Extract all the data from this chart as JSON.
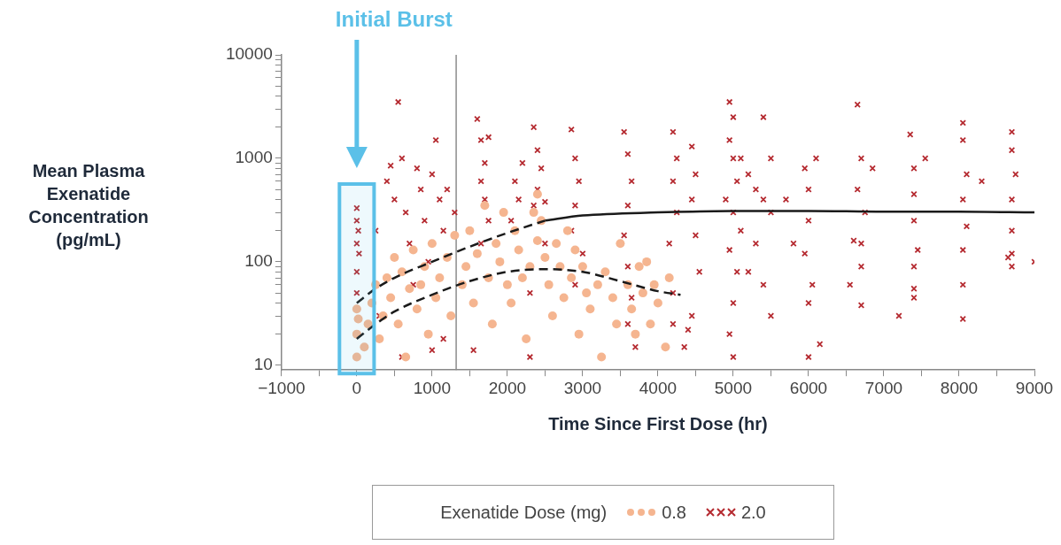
{
  "chart_data": {
    "type": "scatter",
    "ylabel": "Mean Plasma Exenatide Concentration (pg/mL)",
    "xlabel": "Time Since First Dose (hr)",
    "legend_title": "Exenatide Dose (mg)",
    "legend": "bottom",
    "grid": false,
    "log": "y",
    "xlim": [
      -1000,
      9000
    ],
    "xticks": [
      {
        "value": -1000,
        "label": "−1000"
      },
      {
        "value": -500,
        "label": null
      },
      0,
      {
        "value": 500,
        "label": null
      },
      1000,
      {
        "value": 1500,
        "label": null
      },
      2000,
      {
        "value": 2500,
        "label": null
      },
      3000,
      {
        "value": 3500,
        "label": null
      },
      4000,
      {
        "value": 4500,
        "label": null
      },
      5000,
      {
        "value": 5500,
        "label": null
      },
      6000,
      {
        "value": 6500,
        "label": null
      },
      7000,
      {
        "value": 7500,
        "label": null
      },
      8000,
      {
        "value": 8500,
        "label": null
      },
      9000
    ],
    "ylim": [
      9,
      10000
    ],
    "yticks": [
      10,
      {
        "value": 20,
        "label": null
      },
      {
        "value": 30,
        "label": null
      },
      {
        "value": 40,
        "label": null
      },
      {
        "value": 50,
        "label": null
      },
      {
        "value": 60,
        "label": null
      },
      {
        "value": 70,
        "label": null
      },
      {
        "value": 80,
        "label": null
      },
      {
        "value": 90,
        "label": null
      },
      100,
      {
        "value": 200,
        "label": null
      },
      {
        "value": 300,
        "label": null
      },
      {
        "value": 400,
        "label": null
      },
      {
        "value": 500,
        "label": null
      },
      {
        "value": 600,
        "label": null
      },
      {
        "value": 700,
        "label": null
      },
      {
        "value": 800,
        "label": null
      },
      {
        "value": 900,
        "label": null
      },
      1000,
      {
        "value": 2000,
        "label": null
      },
      {
        "value": 3000,
        "label": null
      },
      {
        "value": 4000,
        "label": null
      },
      {
        "value": 5000,
        "label": null
      },
      {
        "value": 6000,
        "label": null
      },
      {
        "value": 7000,
        "label": null
      },
      {
        "value": 8000,
        "label": null
      },
      {
        "value": 9000,
        "label": null
      },
      10000
    ],
    "ref_lines": [
      {
        "axis": "x",
        "value": 1320,
        "color": "#8c8c8c"
      }
    ],
    "bands": [
      {
        "axis": "x",
        "from": -230,
        "to": 230,
        "label": "Initial Burst",
        "color": "#5bc0e8"
      }
    ],
    "series": [
      {
        "name": "0.8",
        "marker": "circle",
        "color": "#f5b590",
        "x": [
          0,
          0,
          0,
          20,
          100,
          150,
          200,
          250,
          300,
          350,
          400,
          450,
          500,
          550,
          600,
          650,
          700,
          750,
          800,
          850,
          900,
          950,
          1000,
          1050,
          1100,
          1200,
          1250,
          1300,
          1400,
          1450,
          1500,
          1550,
          1600,
          1700,
          1750,
          1800,
          1850,
          1900,
          1950,
          2000,
          2050,
          2100,
          2150,
          2200,
          2250,
          2300,
          2350,
          2400,
          2400,
          2450,
          2500,
          2550,
          2600,
          2650,
          2700,
          2750,
          2800,
          2850,
          2900,
          2950,
          3000,
          3050,
          3100,
          3200,
          3250,
          3300,
          3400,
          3450,
          3500,
          3600,
          3650,
          3700,
          3750,
          3800,
          3900,
          4000,
          4100,
          4150,
          3850,
          3950
        ],
        "values": [
          35,
          20,
          12,
          28,
          15,
          25,
          40,
          60,
          18,
          30,
          70,
          45,
          110,
          25,
          80,
          12,
          55,
          130,
          35,
          60,
          90,
          20,
          150,
          45,
          70,
          110,
          30,
          180,
          60,
          90,
          200,
          40,
          120,
          350,
          70,
          25,
          150,
          100,
          300,
          60,
          40,
          200,
          130,
          70,
          18,
          90,
          300,
          450,
          160,
          250,
          110,
          60,
          30,
          150,
          90,
          45,
          200,
          70,
          130,
          20,
          90,
          50,
          35,
          60,
          12,
          80,
          45,
          25,
          150,
          60,
          35,
          20,
          90,
          50,
          25,
          40,
          15,
          70,
          100,
          60
        ]
      },
      {
        "name": "2.0",
        "marker": "cross",
        "color": "#b52a30",
        "x": [
          0,
          0,
          0,
          0,
          0,
          20,
          30,
          250,
          300,
          400,
          450,
          500,
          550,
          600,
          650,
          700,
          750,
          800,
          850,
          900,
          950,
          1150,
          1000,
          1050,
          1100,
          1150,
          1200,
          1300,
          1000,
          600,
          1600,
          1650,
          1700,
          1650,
          1700,
          1750,
          1650,
          1750,
          1550,
          2100,
          2150,
          2200,
          2050,
          2350,
          2400,
          2450,
          2400,
          2350,
          2500,
          2500,
          2300,
          2300,
          2850,
          2900,
          2950,
          2900,
          2850,
          3000,
          2900,
          3550,
          3600,
          3650,
          3600,
          3550,
          3600,
          3650,
          3600,
          3700,
          4200,
          4250,
          4200,
          4250,
          4150,
          4200,
          4200,
          4400,
          4350,
          4450,
          4500,
          4450,
          4500,
          4550,
          4450,
          4950,
          5000,
          4950,
          5000,
          5050,
          4900,
          5000,
          5100,
          4950,
          5050,
          5000,
          4950,
          5000,
          5100,
          5200,
          5300,
          5400,
          5500,
          5300,
          5200,
          5400,
          5500,
          5700,
          5800,
          5400,
          5500,
          5950,
          6000,
          6000,
          5950,
          6050,
          6000,
          6100,
          6150,
          6000,
          6650,
          6700,
          6650,
          6750,
          6700,
          6700,
          6600,
          6850,
          6550,
          6700,
          7350,
          7400,
          7400,
          7400,
          7450,
          7400,
          7400,
          7400,
          7550,
          7200,
          8050,
          8050,
          8100,
          8050,
          8100,
          8050,
          8050,
          8050,
          8300,
          8700,
          8700,
          8750,
          8700,
          8700,
          8700,
          8700,
          8650,
          9000
        ],
        "values": [
          330,
          250,
          150,
          80,
          50,
          200,
          120,
          200,
          30,
          600,
          850,
          400,
          3500,
          1000,
          300,
          150,
          60,
          800,
          500,
          250,
          100,
          18,
          700,
          1500,
          400,
          200,
          500,
          300,
          14,
          12,
          2400,
          1500,
          900,
          600,
          400,
          250,
          150,
          1600,
          14,
          600,
          400,
          900,
          250,
          2000,
          1200,
          800,
          500,
          350,
          380,
          150,
          12,
          50,
          1900,
          1000,
          600,
          350,
          200,
          120,
          60,
          1800,
          1100,
          600,
          350,
          180,
          90,
          45,
          25,
          15,
          1800,
          1000,
          600,
          300,
          150,
          50,
          25,
          22,
          15,
          1300,
          700,
          400,
          180,
          80,
          30,
          3500,
          2500,
          1500,
          1000,
          600,
          400,
          300,
          200,
          130,
          80,
          40,
          20,
          12,
          1000,
          700,
          500,
          400,
          300,
          150,
          80,
          60,
          1000,
          400,
          150,
          2500,
          30,
          800,
          500,
          250,
          120,
          60,
          40,
          1000,
          16,
          12,
          3300,
          1000,
          500,
          300,
          150,
          90,
          160,
          800,
          60,
          38,
          1700,
          800,
          450,
          250,
          130,
          90,
          55,
          45,
          1000,
          30,
          2200,
          1500,
          700,
          400,
          220,
          130,
          60,
          28,
          600,
          1800,
          1200,
          700,
          400,
          200,
          120,
          90,
          110,
          100
        ]
      },
      {
        "type": "line",
        "line_style": "dashed",
        "marker": "none",
        "color": "#1a1a1a",
        "x": [
          0,
          250,
          500,
          1000,
          1500,
          2000,
          2500
        ],
        "values": [
          40,
          55,
          70,
          100,
          140,
          190,
          250
        ]
      },
      {
        "type": "line",
        "line_style": "solid",
        "marker": "none",
        "color": "#1a1a1a",
        "x": [
          2500,
          3000,
          4000,
          5000,
          6000,
          7000,
          8000,
          9000
        ],
        "values": [
          250,
          280,
          300,
          310,
          310,
          305,
          305,
          300
        ]
      },
      {
        "type": "line",
        "line_style": "dashed",
        "marker": "none",
        "color": "#1a1a1a",
        "x": [
          0,
          250,
          500,
          1000,
          1500,
          2000,
          2500,
          3000,
          3500,
          4000,
          4300
        ],
        "values": [
          18,
          25,
          33,
          48,
          65,
          80,
          85,
          80,
          65,
          52,
          48
        ]
      }
    ]
  }
}
